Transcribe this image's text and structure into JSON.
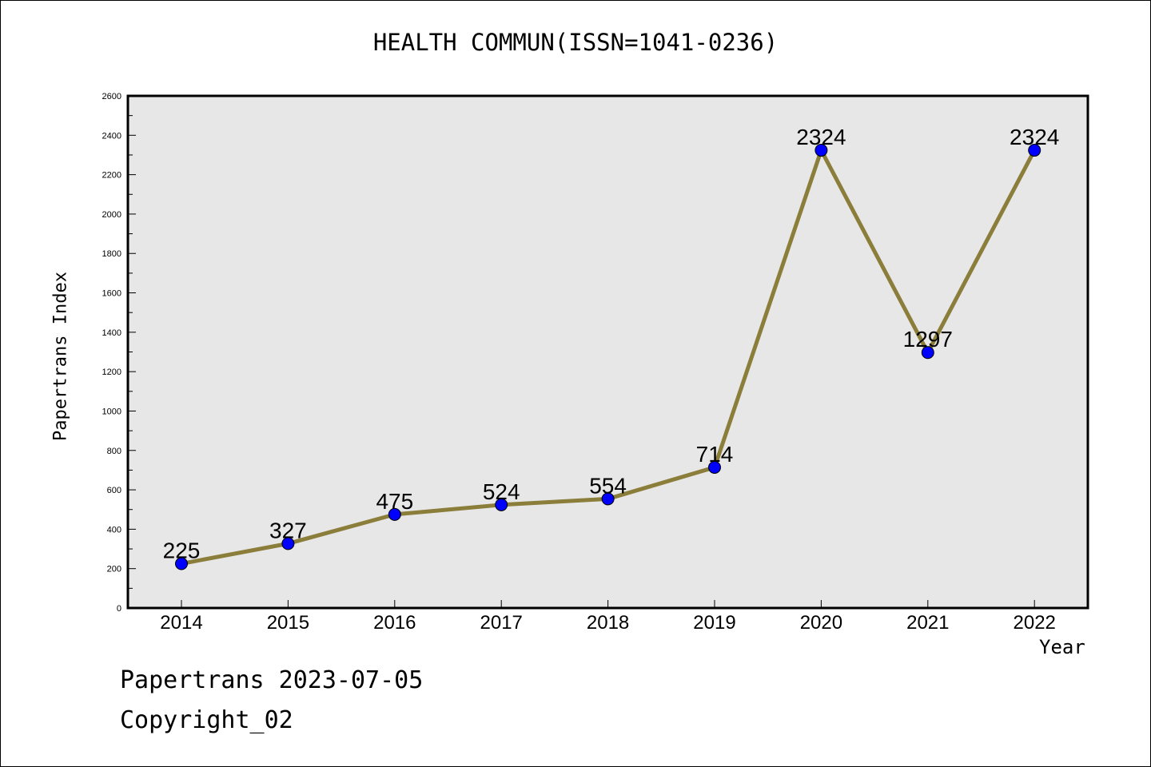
{
  "chart_data": {
    "type": "line",
    "title": "HEALTH COMMUN(ISSN=1041-0236)",
    "xlabel": "Year",
    "ylabel": "Papertrans Index",
    "categories": [
      "2014",
      "2015",
      "2016",
      "2017",
      "2018",
      "2019",
      "2020",
      "2021",
      "2022"
    ],
    "series": [
      {
        "values": [
          225,
          327,
          475,
          524,
          554,
          714,
          2324,
          1297,
          2324
        ],
        "data_labels": [
          "225",
          "327",
          "475",
          "524",
          "554",
          "714",
          "2324",
          "1297",
          "2324"
        ],
        "line_color": "#8b7d3a",
        "marker_color": "#0000ff"
      }
    ],
    "ylim": [
      0,
      2600
    ],
    "yticks": [
      "0",
      "200",
      "400",
      "600",
      "800",
      "1000",
      "1200",
      "1400",
      "1600",
      "1800",
      "2000",
      "2200",
      "2400",
      "2600"
    ],
    "grid": false,
    "plot_background": "#e7e7e7"
  },
  "footer": {
    "date_text": "Papertrans 2023-07-05",
    "copyright_text": "Copyright_02"
  }
}
